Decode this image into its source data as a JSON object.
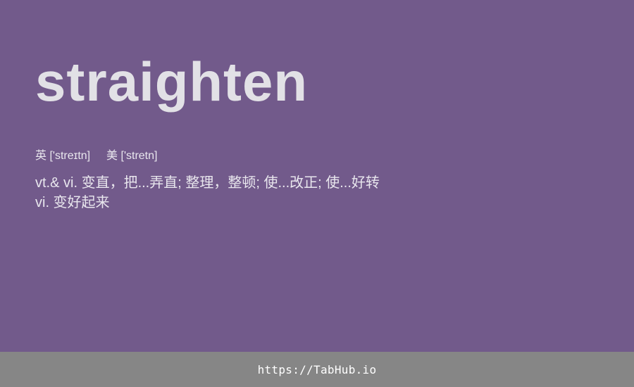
{
  "word": {
    "headword": "straighten",
    "phonetic_uk_label": "英",
    "phonetic_uk": "['streɪtn]",
    "phonetic_us_label": "美",
    "phonetic_us": "['stretn]",
    "definitions": [
      "vt.& vi. 变直，把...弄直; 整理，整顿; 使...改正; 使...好转",
      "vi. 变好起来"
    ]
  },
  "footer": {
    "link_text": "https://TabHub.io"
  },
  "colors": {
    "background": "#725a8b",
    "footer_background": "#868686",
    "text": "#e2e1e6"
  }
}
